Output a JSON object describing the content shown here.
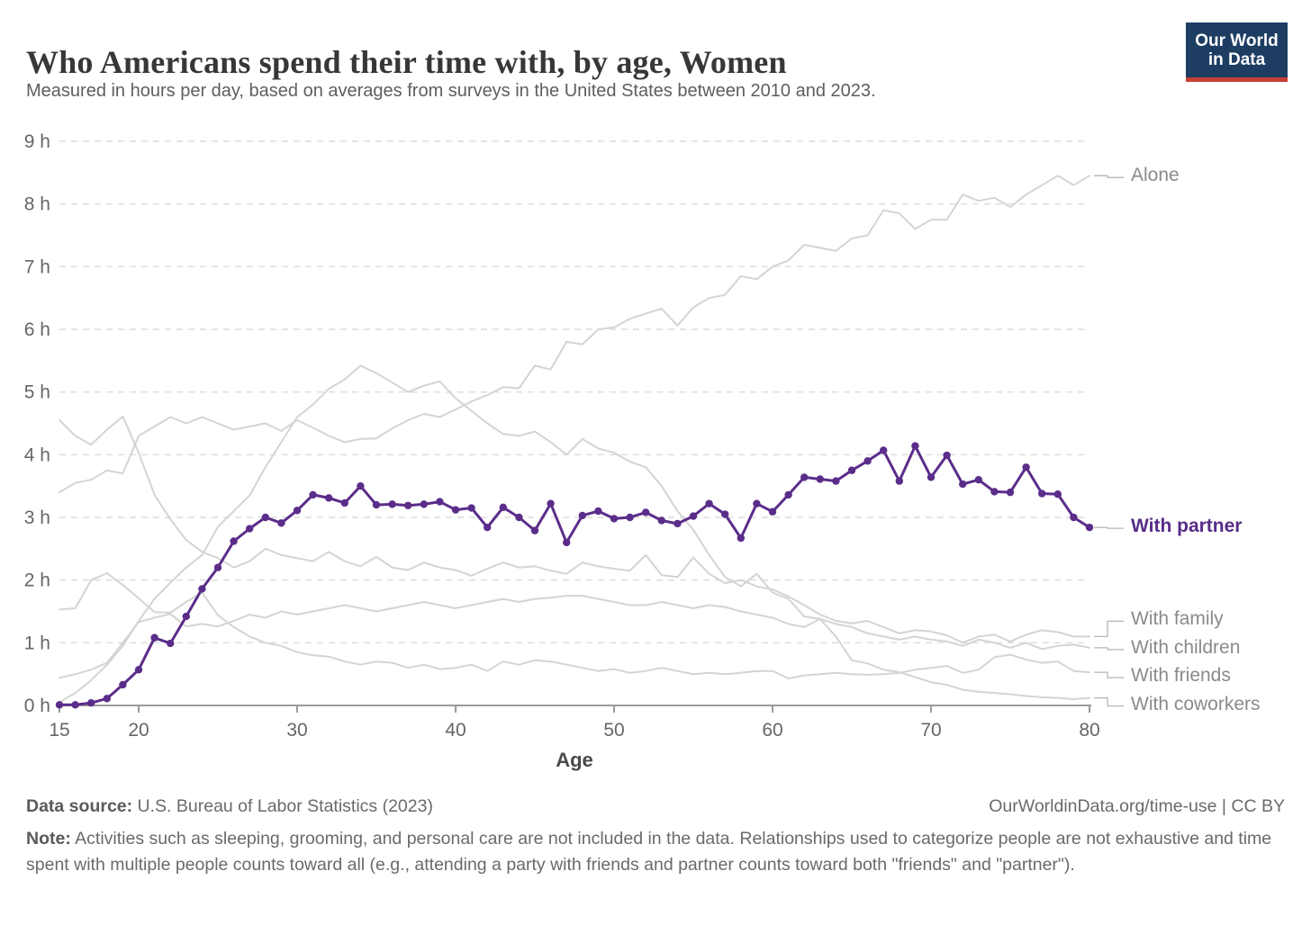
{
  "header": {
    "title": "Who Americans spend their time with, by age, Women",
    "subtitle": "Measured in hours per day, based on averages from surveys in the United States between 2010 and 2023.",
    "logo_line1": "Our World",
    "logo_line2": "in Data"
  },
  "chart_data": {
    "type": "line",
    "xlabel": "Age",
    "ylabel": "",
    "xlim": [
      15,
      80
    ],
    "ylim": [
      0,
      9
    ],
    "x_axis_ticks": [
      15,
      20,
      30,
      40,
      50,
      60,
      70,
      80
    ],
    "y_axis_tick_labels": [
      "0 h",
      "1 h",
      "2 h",
      "3 h",
      "4 h",
      "5 h",
      "6 h",
      "7 h",
      "8 h",
      "9 h"
    ],
    "grid": "horizontal-dashed",
    "legend_position": "right-of-line-endpoints",
    "colors": {
      "highlight": "#5b2d8a",
      "muted": "#d4d4d4",
      "label_gray": "#8a8a8a"
    },
    "x": [
      15,
      16,
      17,
      18,
      19,
      20,
      21,
      22,
      23,
      24,
      25,
      26,
      27,
      28,
      29,
      30,
      31,
      32,
      33,
      34,
      35,
      36,
      37,
      38,
      39,
      40,
      41,
      42,
      43,
      44,
      45,
      46,
      47,
      48,
      49,
      50,
      51,
      52,
      53,
      54,
      55,
      56,
      57,
      58,
      59,
      60,
      61,
      62,
      63,
      64,
      65,
      66,
      67,
      68,
      69,
      70,
      71,
      72,
      73,
      74,
      75,
      76,
      77,
      78,
      79,
      80
    ],
    "series": [
      {
        "name": "Alone",
        "highlight": false,
        "values": [
          3.4,
          3.55,
          3.6,
          3.75,
          3.7,
          4.3,
          4.45,
          4.6,
          4.5,
          4.6,
          4.5,
          4.4,
          4.45,
          4.5,
          4.38,
          4.55,
          4.43,
          4.3,
          4.2,
          4.25,
          4.26,
          4.42,
          4.55,
          4.65,
          4.6,
          4.72,
          4.85,
          4.95,
          5.08,
          5.06,
          5.42,
          5.36,
          5.8,
          5.76,
          6.0,
          6.03,
          6.17,
          6.25,
          6.33,
          6.06,
          6.35,
          6.5,
          6.55,
          6.85,
          6.8,
          7.0,
          7.1,
          7.35,
          7.3,
          7.25,
          7.45,
          7.5,
          7.9,
          7.85,
          7.6,
          7.75,
          7.75,
          8.15,
          8.05,
          8.1,
          7.95,
          8.15,
          8.3,
          8.45,
          8.3,
          8.45
        ]
      },
      {
        "name": "With family",
        "highlight": false,
        "values": [
          4.55,
          4.3,
          4.16,
          4.4,
          4.61,
          4.03,
          3.36,
          2.97,
          2.64,
          2.45,
          2.35,
          2.2,
          2.3,
          2.5,
          2.4,
          2.35,
          2.3,
          2.45,
          2.3,
          2.22,
          2.37,
          2.2,
          2.16,
          2.28,
          2.2,
          2.16,
          2.07,
          2.18,
          2.28,
          2.2,
          2.22,
          2.15,
          2.1,
          2.28,
          2.22,
          2.18,
          2.15,
          2.4,
          2.08,
          2.05,
          2.36,
          2.1,
          1.95,
          2.0,
          1.9,
          1.85,
          1.74,
          1.6,
          1.45,
          1.35,
          1.31,
          1.35,
          1.25,
          1.15,
          1.2,
          1.18,
          1.12,
          1.0,
          1.1,
          1.13,
          1.02,
          1.13,
          1.2,
          1.17,
          1.1,
          1.1
        ]
      },
      {
        "name": "With children",
        "highlight": false,
        "values": [
          0.05,
          0.2,
          0.4,
          0.65,
          0.95,
          1.35,
          1.7,
          1.96,
          2.2,
          2.4,
          2.85,
          3.1,
          3.35,
          3.8,
          4.2,
          4.6,
          4.8,
          5.05,
          5.2,
          5.42,
          5.3,
          5.15,
          5.0,
          5.1,
          5.17,
          4.9,
          4.7,
          4.5,
          4.33,
          4.3,
          4.37,
          4.2,
          4.0,
          4.25,
          4.1,
          4.03,
          3.89,
          3.8,
          3.5,
          3.1,
          2.8,
          2.4,
          2.05,
          1.9,
          2.1,
          1.8,
          1.7,
          1.42,
          1.38,
          1.3,
          1.25,
          1.15,
          1.1,
          1.05,
          1.1,
          1.05,
          1.02,
          0.95,
          1.05,
          1.0,
          0.92,
          1.0,
          0.9,
          0.95,
          0.97,
          0.92
        ]
      },
      {
        "name": "With friends",
        "highlight": false,
        "values": [
          1.53,
          1.55,
          2.0,
          2.11,
          1.92,
          1.71,
          1.49,
          1.48,
          1.65,
          1.8,
          1.44,
          1.25,
          1.1,
          1.0,
          0.95,
          0.85,
          0.8,
          0.78,
          0.7,
          0.65,
          0.7,
          0.68,
          0.6,
          0.65,
          0.58,
          0.6,
          0.65,
          0.55,
          0.7,
          0.65,
          0.72,
          0.7,
          0.65,
          0.6,
          0.55,
          0.58,
          0.52,
          0.55,
          0.6,
          0.55,
          0.5,
          0.52,
          0.5,
          0.52,
          0.55,
          0.55,
          0.43,
          0.48,
          0.5,
          0.52,
          0.5,
          0.49,
          0.5,
          0.52,
          0.57,
          0.6,
          0.63,
          0.52,
          0.57,
          0.77,
          0.81,
          0.73,
          0.68,
          0.7,
          0.55,
          0.53
        ]
      },
      {
        "name": "With coworkers",
        "highlight": false,
        "values": [
          0.44,
          0.5,
          0.57,
          0.68,
          1.0,
          1.33,
          1.4,
          1.46,
          1.26,
          1.3,
          1.26,
          1.35,
          1.45,
          1.4,
          1.5,
          1.45,
          1.5,
          1.55,
          1.6,
          1.55,
          1.5,
          1.55,
          1.6,
          1.65,
          1.6,
          1.55,
          1.6,
          1.65,
          1.7,
          1.65,
          1.7,
          1.72,
          1.75,
          1.75,
          1.7,
          1.65,
          1.6,
          1.6,
          1.65,
          1.6,
          1.55,
          1.6,
          1.57,
          1.5,
          1.45,
          1.4,
          1.3,
          1.25,
          1.38,
          1.1,
          0.72,
          0.67,
          0.57,
          0.53,
          0.45,
          0.37,
          0.33,
          0.25,
          0.22,
          0.2,
          0.18,
          0.15,
          0.13,
          0.12,
          0.1,
          0.12
        ]
      },
      {
        "name": "With partner",
        "highlight": true,
        "values": [
          0.01,
          0.01,
          0.04,
          0.11,
          0.33,
          0.57,
          1.08,
          0.99,
          1.42,
          1.86,
          2.2,
          2.62,
          2.82,
          3.0,
          2.91,
          3.11,
          3.36,
          3.31,
          3.23,
          3.5,
          3.2,
          3.21,
          3.19,
          3.21,
          3.25,
          3.12,
          3.15,
          2.84,
          3.16,
          3.0,
          2.79,
          3.22,
          2.6,
          3.03,
          3.1,
          2.98,
          3.0,
          3.08,
          2.95,
          2.9,
          3.02,
          3.22,
          3.05,
          2.67,
          3.22,
          3.09,
          3.36,
          3.64,
          3.61,
          3.58,
          3.75,
          3.9,
          4.07,
          3.58,
          4.14,
          3.64,
          3.99,
          3.53,
          3.6,
          3.41,
          3.4,
          3.8,
          3.38,
          3.37,
          3.0,
          2.84
        ]
      }
    ]
  },
  "footer": {
    "data_source_label": "Data source:",
    "data_source_value": " U.S. Bureau of Labor Statistics (2023)",
    "credit": "OurWorldinData.org/time-use | CC BY",
    "note_label": "Note:",
    "note_text": " Activities such as sleeping, grooming, and personal care are not included in the data. Relationships used to categorize people are not exhaustive and time spent with multiple people counts toward all (e.g., attending a party with friends and partner counts toward both \"friends\" and \"partner\")."
  }
}
